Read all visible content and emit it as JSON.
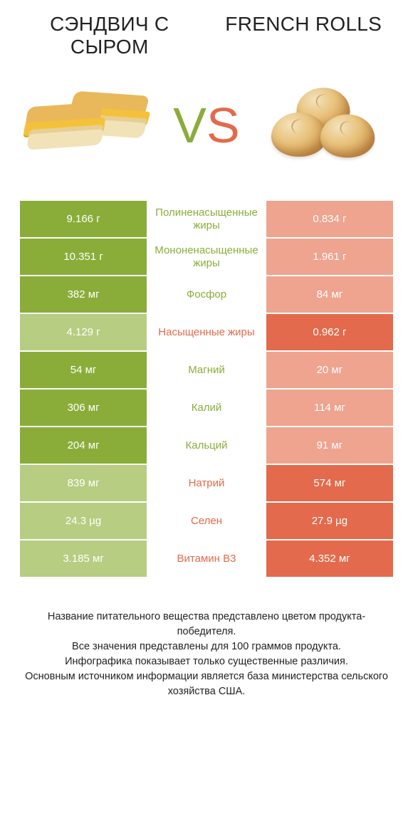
{
  "colors": {
    "left_winner": "#8aad3a",
    "right_winner": "#e36a4c",
    "left_loser": "#b7cd81",
    "right_loser": "#eea48f",
    "mid_left_text": "#8aad3a",
    "mid_right_text": "#e36a4c",
    "white": "#ffffff"
  },
  "header": {
    "left_title": "СЭНДВИЧ С СЫРОМ",
    "right_title": "FRENCH ROLLS",
    "vs_v": "V",
    "vs_s": "S"
  },
  "rows": [
    {
      "nutrient": "Полиненасыщенные жиры",
      "left": "9.166 г",
      "right": "0.834 г",
      "winner": "left"
    },
    {
      "nutrient": "Мононенасыщенные жиры",
      "left": "10.351 г",
      "right": "1.961 г",
      "winner": "left"
    },
    {
      "nutrient": "Фосфор",
      "left": "382 мг",
      "right": "84 мг",
      "winner": "left"
    },
    {
      "nutrient": "Насыщенные жиры",
      "left": "4.129 г",
      "right": "0.962 г",
      "winner": "right"
    },
    {
      "nutrient": "Магний",
      "left": "54 мг",
      "right": "20 мг",
      "winner": "left"
    },
    {
      "nutrient": "Калий",
      "left": "306 мг",
      "right": "114 мг",
      "winner": "left"
    },
    {
      "nutrient": "Кальций",
      "left": "204 мг",
      "right": "91 мг",
      "winner": "left"
    },
    {
      "nutrient": "Натрий",
      "left": "839 мг",
      "right": "574 мг",
      "winner": "right"
    },
    {
      "nutrient": "Селен",
      "left": "24.3 µg",
      "right": "27.9 µg",
      "winner": "right"
    },
    {
      "nutrient": "Витамин B3",
      "left": "3.185 мг",
      "right": "4.352 мг",
      "winner": "right"
    }
  ],
  "footnote": {
    "l1": "Название питательного вещества представлено цветом продукта-победителя.",
    "l2": "Все значения представлены для 100 граммов продукта.",
    "l3": "Инфографика показывает только существенные различия.",
    "l4": "Основным источником информации является база министерства сельского хозяйства США."
  }
}
